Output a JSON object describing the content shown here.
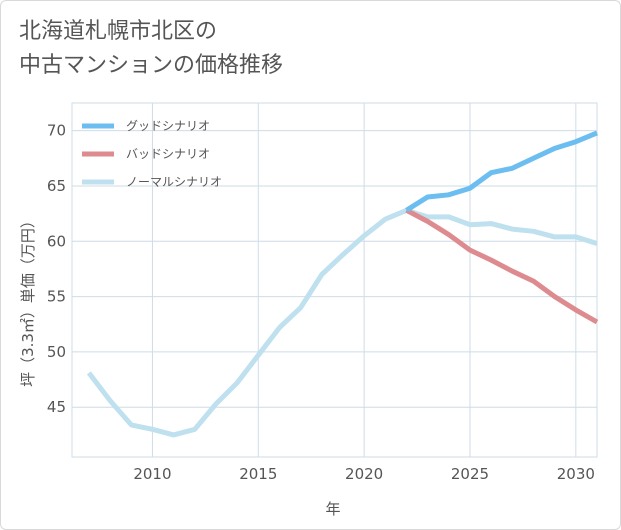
{
  "title_line1": "北海道札幌市北区の",
  "title_line2": "中古マンションの価格推移",
  "chart_data": {
    "type": "line",
    "xlabel": "年",
    "ylabel": "坪（3.3㎡）単価（万円）",
    "xlim": [
      2006.2,
      2031
    ],
    "ylim": [
      40.5,
      72.5
    ],
    "xticks": [
      2010,
      2015,
      2020,
      2025,
      2030
    ],
    "yticks": [
      45,
      50,
      55,
      60,
      65,
      70
    ],
    "grid": true,
    "legend_position": "top-left",
    "series": [
      {
        "name": "グッドシナリオ",
        "color": "#6cbdf0",
        "x": [
          2022,
          2023,
          2024,
          2025,
          2026,
          2027,
          2028,
          2029,
          2030,
          2031
        ],
        "values": [
          62.8,
          64.0,
          64.2,
          64.8,
          66.2,
          66.6,
          67.5,
          68.4,
          69.0,
          69.8
        ]
      },
      {
        "name": "バッドシナリオ",
        "color": "#dd8b8f",
        "x": [
          2022,
          2023,
          2024,
          2025,
          2026,
          2027,
          2028,
          2029,
          2030,
          2031
        ],
        "values": [
          62.8,
          61.8,
          60.6,
          59.2,
          58.3,
          57.3,
          56.4,
          55.0,
          53.8,
          52.7
        ]
      },
      {
        "name": "ノーマルシナリオ",
        "color": "#bfe0ee",
        "x": [
          2007,
          2008,
          2009,
          2010,
          2011,
          2012,
          2013,
          2014,
          2015,
          2016,
          2017,
          2018,
          2019,
          2020,
          2021,
          2022,
          2023,
          2024,
          2025,
          2026,
          2027,
          2028,
          2029,
          2030,
          2031
        ],
        "values": [
          48.1,
          45.6,
          43.4,
          43.0,
          42.5,
          43.0,
          45.3,
          47.2,
          49.7,
          52.2,
          54.0,
          57.0,
          58.8,
          60.5,
          62.0,
          62.8,
          62.2,
          62.2,
          61.5,
          61.6,
          61.1,
          60.9,
          60.4,
          60.4,
          59.8
        ]
      }
    ]
  }
}
